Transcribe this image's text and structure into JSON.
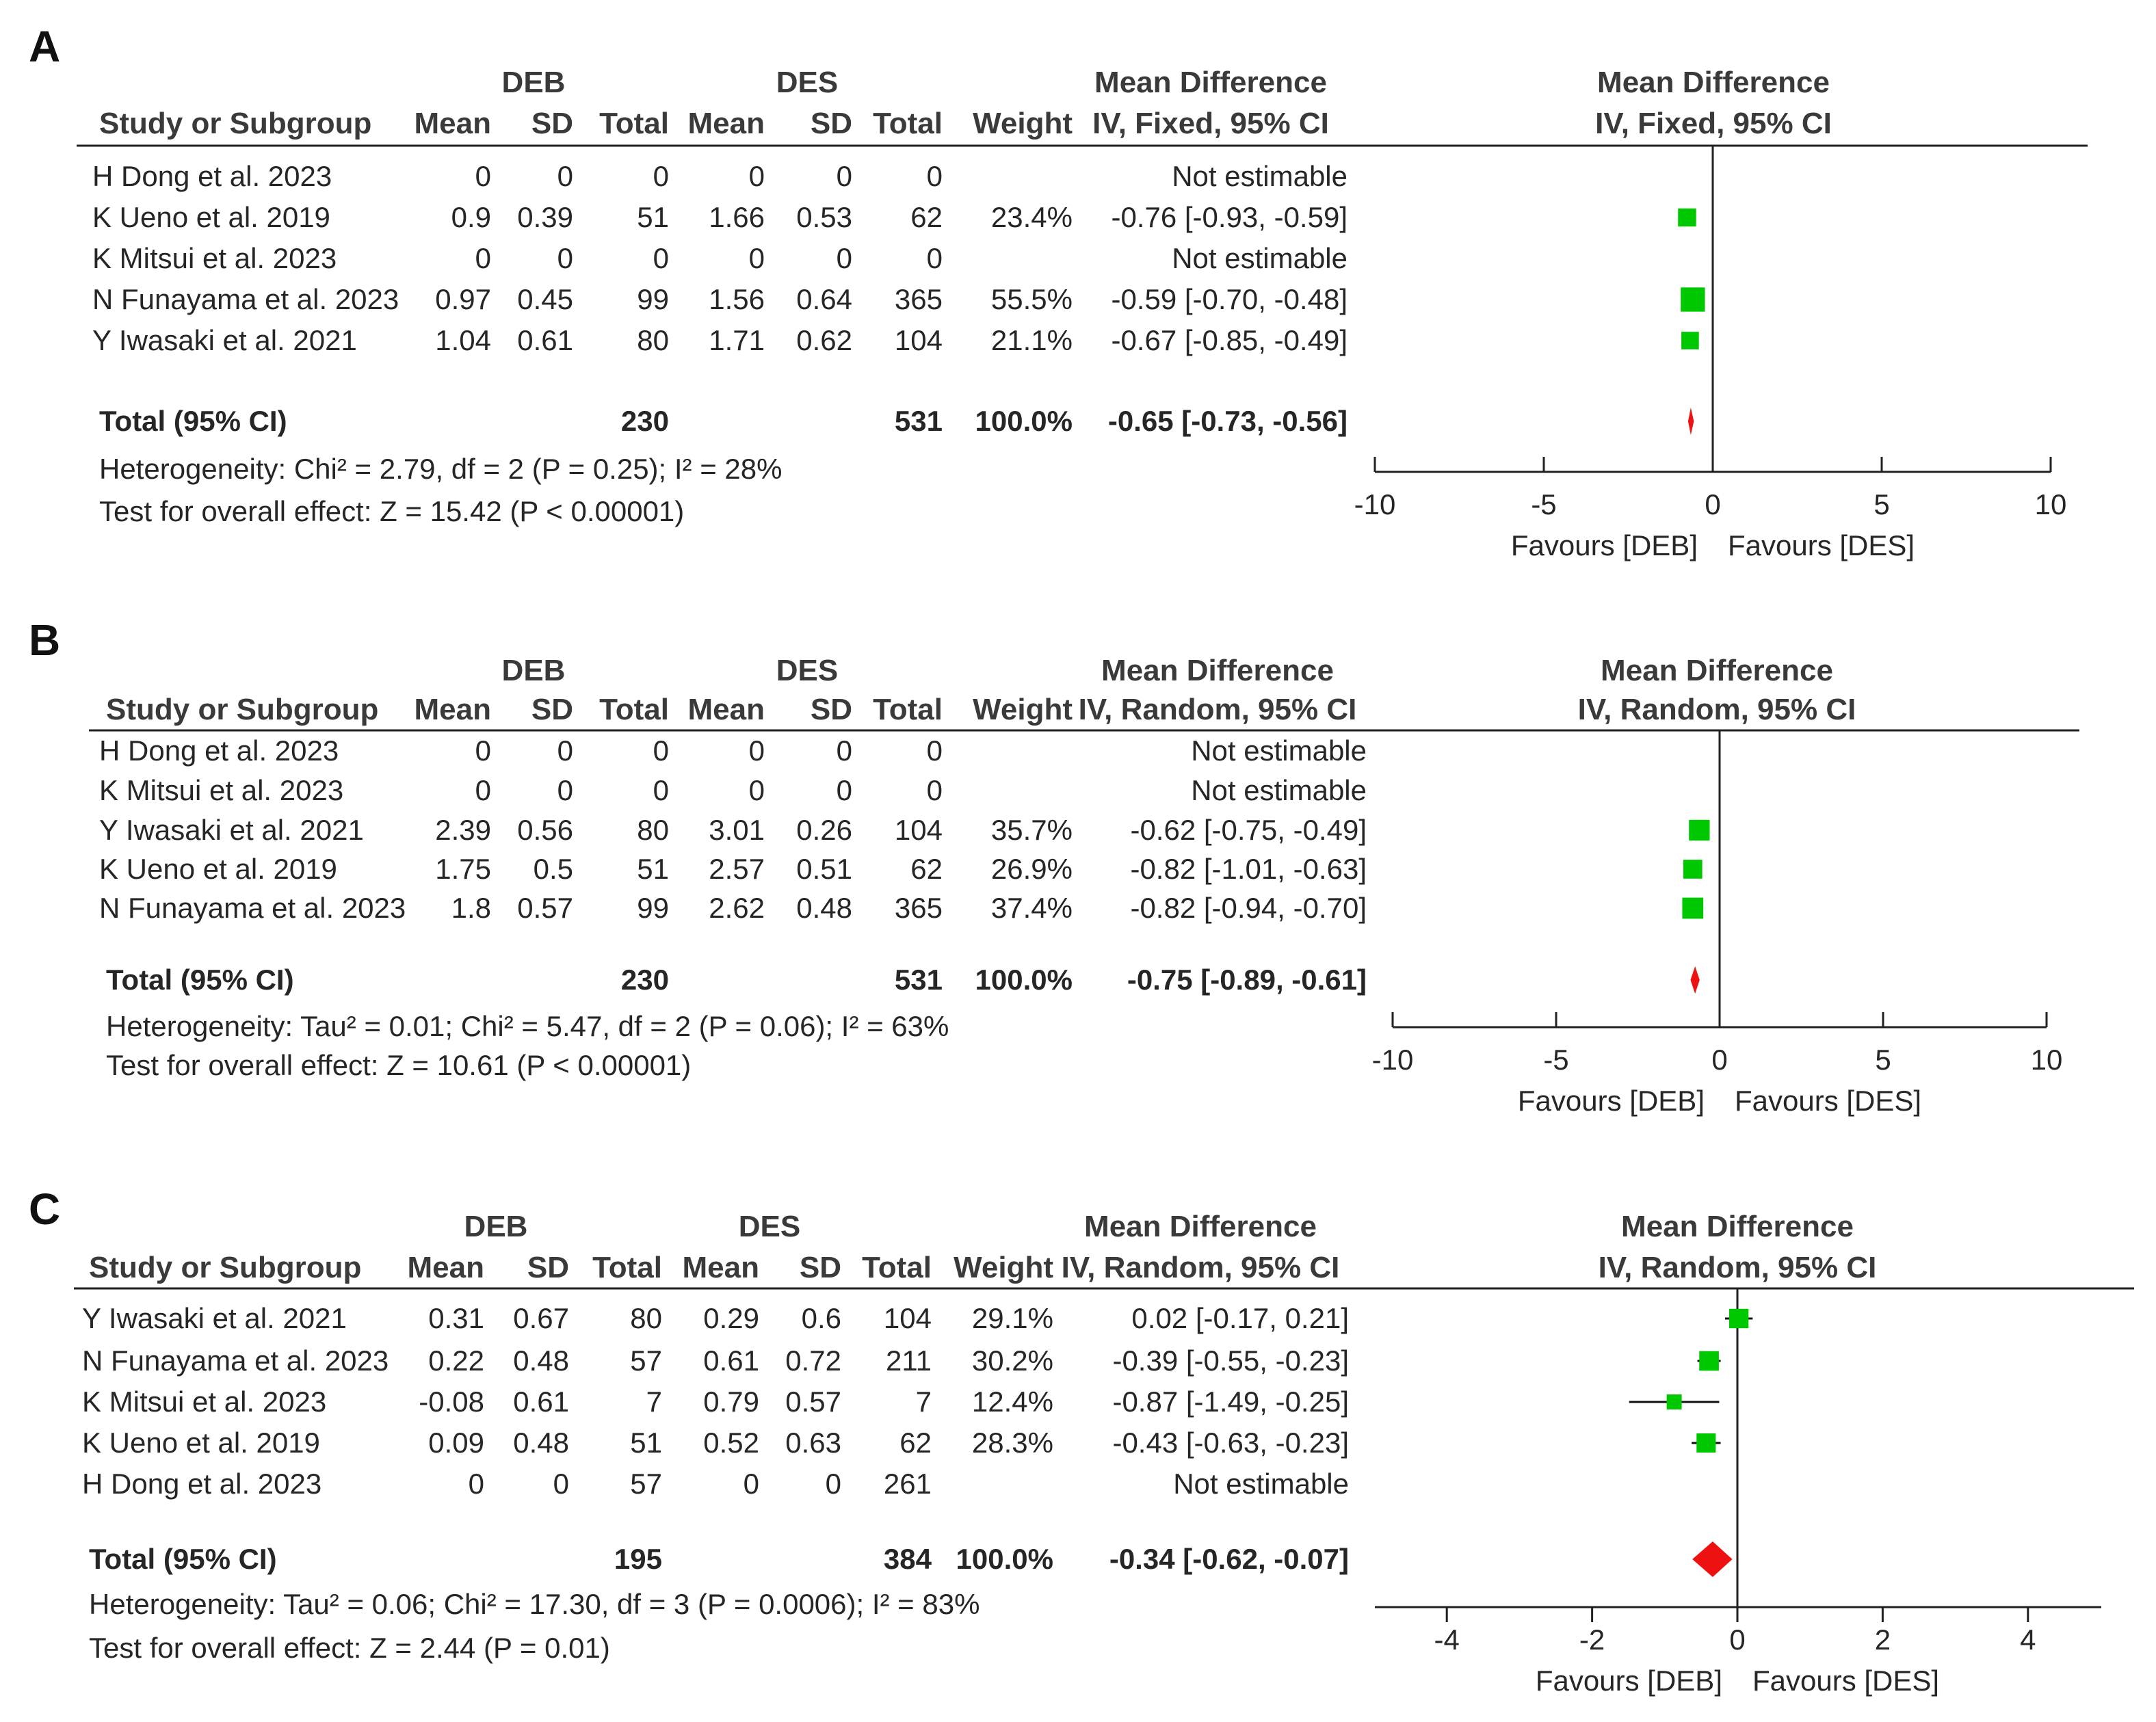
{
  "colors": {
    "box": "#00c800",
    "diamond": "#ee1111",
    "text": "#262626",
    "axis": "#222222"
  },
  "panels": [
    {
      "label": "A",
      "group1": "DEB",
      "group2": "DES",
      "col_study": "Study or Subgroup",
      "col_mean": "Mean",
      "col_sd": "SD",
      "col_total": "Total",
      "col_weight": "Weight",
      "md_head1": "Mean Difference",
      "md_head2": "IV, Fixed, 95% CI",
      "plot_head1": "Mean Difference",
      "plot_head2": "IV, Fixed, 95% CI",
      "axis": {
        "min": -10,
        "max": 10,
        "ticks": [
          "-10",
          "-5",
          "0",
          "5",
          "10"
        ]
      },
      "favours_left": "Favours [DEB]",
      "favours_right": "Favours [DES]",
      "total_label": "Total (95% CI)",
      "total": {
        "t1": "230",
        "t2": "531",
        "weight": "100.0%",
        "ci": "-0.65 [-0.73, -0.56]",
        "md": -0.65,
        "lo": -0.73,
        "hi": -0.56
      },
      "heterogeneity": "Heterogeneity: Chi² = 2.79, df = 2 (P = 0.25); I² = 28%",
      "overall": "Test for overall effect: Z = 15.42 (P < 0.00001)",
      "studies": [
        {
          "name": "H Dong et al.",
          "year": "2023",
          "m1": "0",
          "sd1": "0",
          "t1": "0",
          "m2": "0",
          "sd2": "0",
          "t2": "0",
          "weight": "",
          "ci": "Not estimable",
          "md": null,
          "lo": null,
          "hi": null,
          "w": 0
        },
        {
          "name": "K Ueno et al.",
          "year": "2019",
          "m1": "0.9",
          "sd1": "0.39",
          "t1": "51",
          "m2": "1.66",
          "sd2": "0.53",
          "t2": "62",
          "weight": "23.4%",
          "ci": "-0.76 [-0.93, -0.59]",
          "md": -0.76,
          "lo": -0.93,
          "hi": -0.59,
          "w": 23.4
        },
        {
          "name": "K Mitsui et al.",
          "year": "2023",
          "m1": "0",
          "sd1": "0",
          "t1": "0",
          "m2": "0",
          "sd2": "0",
          "t2": "0",
          "weight": "",
          "ci": "Not estimable",
          "md": null,
          "lo": null,
          "hi": null,
          "w": 0
        },
        {
          "name": "N Funayama et al.",
          "year": "2023",
          "m1": "0.97",
          "sd1": "0.45",
          "t1": "99",
          "m2": "1.56",
          "sd2": "0.64",
          "t2": "365",
          "weight": "55.5%",
          "ci": "-0.59 [-0.70, -0.48]",
          "md": -0.59,
          "lo": -0.7,
          "hi": -0.48,
          "w": 55.5
        },
        {
          "name": "Y Iwasaki et al.",
          "year": "2021",
          "m1": "1.04",
          "sd1": "0.61",
          "t1": "80",
          "m2": "1.71",
          "sd2": "0.62",
          "t2": "104",
          "weight": "21.1%",
          "ci": "-0.67 [-0.85, -0.49]",
          "md": -0.67,
          "lo": -0.85,
          "hi": -0.49,
          "w": 21.1
        }
      ]
    },
    {
      "label": "B",
      "group1": "DEB",
      "group2": "DES",
      "col_study": "Study or Subgroup",
      "col_mean": "Mean",
      "col_sd": "SD",
      "col_total": "Total",
      "col_weight": "Weight",
      "md_head1": "Mean Difference",
      "md_head2": "IV, Random, 95% CI",
      "plot_head1": "Mean Difference",
      "plot_head2": "IV, Random, 95% CI",
      "axis": {
        "min": -10,
        "max": 10,
        "ticks": [
          "-10",
          "-5",
          "0",
          "5",
          "10"
        ]
      },
      "favours_left": "Favours [DEB]",
      "favours_right": "Favours [DES]",
      "total_label": "Total (95% CI)",
      "total": {
        "t1": "230",
        "t2": "531",
        "weight": "100.0%",
        "ci": "-0.75 [-0.89, -0.61]",
        "md": -0.75,
        "lo": -0.89,
        "hi": -0.61
      },
      "heterogeneity": "Heterogeneity: Tau² = 0.01; Chi² = 5.47, df = 2 (P = 0.06); I² = 63%",
      "overall": "Test for overall effect: Z = 10.61 (P < 0.00001)",
      "studies": [
        {
          "name": "H Dong et al.",
          "year": "2023",
          "m1": "0",
          "sd1": "0",
          "t1": "0",
          "m2": "0",
          "sd2": "0",
          "t2": "0",
          "weight": "",
          "ci": "Not estimable",
          "md": null,
          "lo": null,
          "hi": null,
          "w": 0
        },
        {
          "name": "K Mitsui et al.",
          "year": "2023",
          "m1": "0",
          "sd1": "0",
          "t1": "0",
          "m2": "0",
          "sd2": "0",
          "t2": "0",
          "weight": "",
          "ci": "Not estimable",
          "md": null,
          "lo": null,
          "hi": null,
          "w": 0
        },
        {
          "name": "Y Iwasaki et al.",
          "year": "2021",
          "m1": "2.39",
          "sd1": "0.56",
          "t1": "80",
          "m2": "3.01",
          "sd2": "0.26",
          "t2": "104",
          "weight": "35.7%",
          "ci": "-0.62 [-0.75, -0.49]",
          "md": -0.62,
          "lo": -0.75,
          "hi": -0.49,
          "w": 35.7
        },
        {
          "name": "K Ueno et al.",
          "year": "2019",
          "m1": "1.75",
          "sd1": "0.5",
          "t1": "51",
          "m2": "2.57",
          "sd2": "0.51",
          "t2": "62",
          "weight": "26.9%",
          "ci": "-0.82 [-1.01, -0.63]",
          "md": -0.82,
          "lo": -1.01,
          "hi": -0.63,
          "w": 26.9
        },
        {
          "name": "N Funayama et al.",
          "year": "2023",
          "m1": "1.8",
          "sd1": "0.57",
          "t1": "99",
          "m2": "2.62",
          "sd2": "0.48",
          "t2": "365",
          "weight": "37.4%",
          "ci": "-0.82 [-0.94, -0.70]",
          "md": -0.82,
          "lo": -0.94,
          "hi": -0.7,
          "w": 37.4
        }
      ]
    },
    {
      "label": "C",
      "group1": "DEB",
      "group2": "DES",
      "col_study": "Study or Subgroup",
      "col_mean": "Mean",
      "col_sd": "SD",
      "col_total": "Total",
      "col_weight": "Weight",
      "md_head1": "Mean Difference",
      "md_head2": "IV, Random, 95% CI",
      "plot_head1": "Mean Difference",
      "plot_head2": "IV, Random, 95% CI",
      "axis": {
        "min": -5,
        "max": 5,
        "ticks": [
          "-4",
          "-2",
          "0",
          "2",
          "4"
        ]
      },
      "favours_left": "Favours [DEB]",
      "favours_right": "Favours [DES]",
      "total_label": "Total (95% CI)",
      "total": {
        "t1": "195",
        "t2": "384",
        "weight": "100.0%",
        "ci": "-0.34 [-0.62, -0.07]",
        "md": -0.34,
        "lo": -0.62,
        "hi": -0.07
      },
      "heterogeneity": "Heterogeneity: Tau² = 0.06; Chi² = 17.30, df = 3 (P = 0.0006); I² = 83%",
      "overall": "Test for overall effect: Z = 2.44 (P = 0.01)",
      "studies": [
        {
          "name": "Y Iwasaki et al.",
          "year": "2021",
          "m1": "0.31",
          "sd1": "0.67",
          "t1": "80",
          "m2": "0.29",
          "sd2": "0.6",
          "t2": "104",
          "weight": "29.1%",
          "ci": "0.02 [-0.17, 0.21]",
          "md": 0.02,
          "lo": -0.17,
          "hi": 0.21,
          "w": 29.1
        },
        {
          "name": "N Funayama et al.",
          "year": "2023",
          "m1": "0.22",
          "sd1": "0.48",
          "t1": "57",
          "m2": "0.61",
          "sd2": "0.72",
          "t2": "211",
          "weight": "30.2%",
          "ci": "-0.39 [-0.55, -0.23]",
          "md": -0.39,
          "lo": -0.55,
          "hi": -0.23,
          "w": 30.2
        },
        {
          "name": "K Mitsui et al.",
          "year": "2023",
          "m1": "-0.08",
          "sd1": "0.61",
          "t1": "7",
          "m2": "0.79",
          "sd2": "0.57",
          "t2": "7",
          "weight": "12.4%",
          "ci": "-0.87 [-1.49, -0.25]",
          "md": -0.87,
          "lo": -1.49,
          "hi": -0.25,
          "w": 12.4
        },
        {
          "name": "K Ueno et al.",
          "year": "2019",
          "m1": "0.09",
          "sd1": "0.48",
          "t1": "51",
          "m2": "0.52",
          "sd2": "0.63",
          "t2": "62",
          "weight": "28.3%",
          "ci": "-0.43 [-0.63, -0.23]",
          "md": -0.43,
          "lo": -0.63,
          "hi": -0.23,
          "w": 28.3
        },
        {
          "name": "H Dong et al.",
          "year": "2023",
          "m1": "0",
          "sd1": "0",
          "t1": "57",
          "m2": "0",
          "sd2": "0",
          "t2": "261",
          "weight": "",
          "ci": "Not estimable",
          "md": null,
          "lo": null,
          "hi": null,
          "w": 0
        }
      ]
    }
  ],
  "chart_data": [
    {
      "type": "forest",
      "title": "A",
      "effect": "Mean Difference IV, Fixed, 95% CI",
      "xlim": [
        -10,
        10
      ],
      "xlabel_left": "Favours [DEB]",
      "xlabel_right": "Favours [DES]",
      "series": [
        {
          "name": "K Ueno et al. 2019",
          "values": [
            -0.76,
            -0.93,
            -0.59
          ]
        },
        {
          "name": "N Funayama et al. 2023",
          "values": [
            -0.59,
            -0.7,
            -0.48
          ]
        },
        {
          "name": "Y Iwasaki et al. 2021",
          "values": [
            -0.67,
            -0.85,
            -0.49
          ]
        },
        {
          "name": "Total (95% CI)",
          "values": [
            -0.65,
            -0.73,
            -0.56
          ]
        }
      ]
    },
    {
      "type": "forest",
      "title": "B",
      "effect": "Mean Difference IV, Random, 95% CI",
      "xlim": [
        -10,
        10
      ],
      "xlabel_left": "Favours [DEB]",
      "xlabel_right": "Favours [DES]",
      "series": [
        {
          "name": "Y Iwasaki et al. 2021",
          "values": [
            -0.62,
            -0.75,
            -0.49
          ]
        },
        {
          "name": "K Ueno et al. 2019",
          "values": [
            -0.82,
            -1.01,
            -0.63
          ]
        },
        {
          "name": "N Funayama et al. 2023",
          "values": [
            -0.82,
            -0.94,
            -0.7
          ]
        },
        {
          "name": "Total (95% CI)",
          "values": [
            -0.75,
            -0.89,
            -0.61
          ]
        }
      ]
    },
    {
      "type": "forest",
      "title": "C",
      "effect": "Mean Difference IV, Random, 95% CI",
      "xlim": [
        -5,
        5
      ],
      "xlabel_left": "Favours [DEB]",
      "xlabel_right": "Favours [DES]",
      "series": [
        {
          "name": "Y Iwasaki et al. 2021",
          "values": [
            0.02,
            -0.17,
            0.21
          ]
        },
        {
          "name": "N Funayama et al. 2023",
          "values": [
            -0.39,
            -0.55,
            -0.23
          ]
        },
        {
          "name": "K Mitsui et al. 2023",
          "values": [
            -0.87,
            -1.49,
            -0.25
          ]
        },
        {
          "name": "K Ueno et al. 2019",
          "values": [
            -0.43,
            -0.63,
            -0.23
          ]
        },
        {
          "name": "Total (95% CI)",
          "values": [
            -0.34,
            -0.62,
            -0.07
          ]
        }
      ]
    }
  ]
}
